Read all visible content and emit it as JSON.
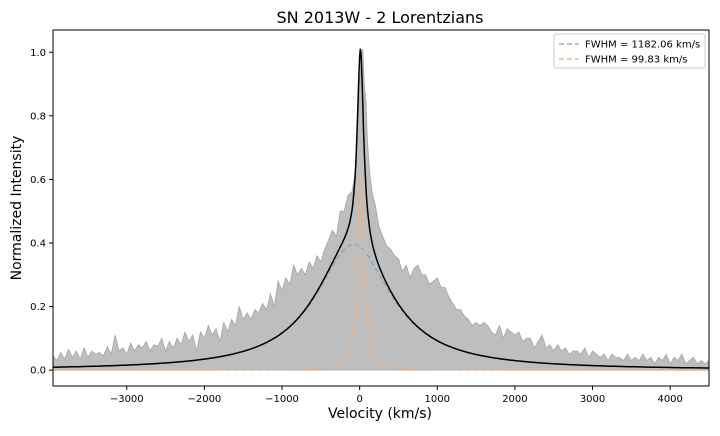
{
  "chart_data": {
    "type": "line",
    "title": "SN 2013W - 2 Lorentzians",
    "xlabel": "Velocity (km/s)",
    "ylabel": "Normalized Intensity",
    "xlim": [
      -3950,
      4500
    ],
    "ylim": [
      -0.05,
      1.07
    ],
    "x_ticks": [
      -3000,
      -2000,
      -1000,
      0,
      1000,
      2000,
      3000,
      4000
    ],
    "x_tick_labels": [
      "−3000",
      "−2000",
      "−1000",
      "0",
      "1000",
      "2000",
      "3000",
      "4000"
    ],
    "y_ticks": [
      0.0,
      0.2,
      0.4,
      0.6,
      0.8,
      1.0
    ],
    "y_tick_labels": [
      "0.0",
      "0.2",
      "0.4",
      "0.6",
      "0.8",
      "1.0"
    ],
    "grid": false,
    "legend_position": "top-right",
    "model": {
      "baseline": 0.0,
      "components": [
        {
          "name": "FWHM = 1182.06 km/s",
          "center": -80,
          "fwhm": 1182.06,
          "amplitude": 0.395,
          "color": "#7aa6c9"
        },
        {
          "name": "FWHM = 99.83 km/s",
          "center": 10,
          "fwhm": 99.83,
          "amplitude": 0.625,
          "color": "#f4b07a"
        }
      ],
      "total_color": "#000000"
    },
    "observed": {
      "fill_color": "#bebebe",
      "edge_color": "#a6a6a6",
      "points": [
        [
          -3950,
          0.045
        ],
        [
          -3900,
          0.03
        ],
        [
          -3850,
          0.055
        ],
        [
          -3800,
          0.035
        ],
        [
          -3750,
          0.065
        ],
        [
          -3700,
          0.04
        ],
        [
          -3650,
          0.06
        ],
        [
          -3600,
          0.035
        ],
        [
          -3550,
          0.07
        ],
        [
          -3500,
          0.04
        ],
        [
          -3450,
          0.06
        ],
        [
          -3400,
          0.05
        ],
        [
          -3350,
          0.055
        ],
        [
          -3300,
          0.045
        ],
        [
          -3250,
          0.075
        ],
        [
          -3200,
          0.05
        ],
        [
          -3150,
          0.11
        ],
        [
          -3100,
          0.06
        ],
        [
          -3050,
          0.07
        ],
        [
          -3000,
          0.05
        ],
        [
          -2950,
          0.085
        ],
        [
          -2900,
          0.06
        ],
        [
          -2850,
          0.08
        ],
        [
          -2800,
          0.07
        ],
        [
          -2750,
          0.09
        ],
        [
          -2700,
          0.06
        ],
        [
          -2650,
          0.08
        ],
        [
          -2600,
          0.075
        ],
        [
          -2550,
          0.1
        ],
        [
          -2500,
          0.06
        ],
        [
          -2450,
          0.09
        ],
        [
          -2400,
          0.07
        ],
        [
          -2350,
          0.1
        ],
        [
          -2300,
          0.08
        ],
        [
          -2250,
          0.12
        ],
        [
          -2200,
          0.09
        ],
        [
          -2150,
          0.11
        ],
        [
          -2100,
          0.06
        ],
        [
          -2050,
          0.12
        ],
        [
          -2000,
          0.1
        ],
        [
          -1950,
          0.14
        ],
        [
          -1900,
          0.11
        ],
        [
          -1850,
          0.13
        ],
        [
          -1800,
          0.09
        ],
        [
          -1750,
          0.15
        ],
        [
          -1700,
          0.12
        ],
        [
          -1650,
          0.16
        ],
        [
          -1600,
          0.14
        ],
        [
          -1550,
          0.2
        ],
        [
          -1500,
          0.16
        ],
        [
          -1450,
          0.18
        ],
        [
          -1400,
          0.16
        ],
        [
          -1350,
          0.19
        ],
        [
          -1300,
          0.18
        ],
        [
          -1250,
          0.21
        ],
        [
          -1200,
          0.19
        ],
        [
          -1150,
          0.24
        ],
        [
          -1100,
          0.2
        ],
        [
          -1050,
          0.28
        ],
        [
          -1000,
          0.25
        ],
        [
          -950,
          0.29
        ],
        [
          -900,
          0.27
        ],
        [
          -850,
          0.33
        ],
        [
          -800,
          0.3
        ],
        [
          -750,
          0.32
        ],
        [
          -700,
          0.3
        ],
        [
          -650,
          0.34
        ],
        [
          -600,
          0.32
        ],
        [
          -550,
          0.36
        ],
        [
          -500,
          0.34
        ],
        [
          -450,
          0.38
        ],
        [
          -400,
          0.41
        ],
        [
          -350,
          0.44
        ],
        [
          -300,
          0.42
        ],
        [
          -250,
          0.5
        ],
        [
          -200,
          0.5
        ],
        [
          -150,
          0.55
        ],
        [
          -100,
          0.56
        ],
        [
          -50,
          0.63
        ],
        [
          -25,
          0.75
        ],
        [
          0,
          0.9
        ],
        [
          20,
          0.99
        ],
        [
          40,
          1.01
        ],
        [
          60,
          0.9
        ],
        [
          80,
          0.85
        ],
        [
          100,
          0.72
        ],
        [
          130,
          0.62
        ],
        [
          160,
          0.56
        ],
        [
          200,
          0.52
        ],
        [
          250,
          0.45
        ],
        [
          300,
          0.42
        ],
        [
          350,
          0.39
        ],
        [
          400,
          0.38
        ],
        [
          450,
          0.36
        ],
        [
          500,
          0.35
        ],
        [
          550,
          0.31
        ],
        [
          600,
          0.33
        ],
        [
          650,
          0.29
        ],
        [
          700,
          0.32
        ],
        [
          750,
          0.33
        ],
        [
          800,
          0.3
        ],
        [
          850,
          0.3
        ],
        [
          900,
          0.27
        ],
        [
          950,
          0.28
        ],
        [
          1000,
          0.29
        ],
        [
          1050,
          0.26
        ],
        [
          1100,
          0.26
        ],
        [
          1150,
          0.23
        ],
        [
          1200,
          0.21
        ],
        [
          1250,
          0.19
        ],
        [
          1300,
          0.19
        ],
        [
          1350,
          0.17
        ],
        [
          1400,
          0.16
        ],
        [
          1450,
          0.14
        ],
        [
          1500,
          0.15
        ],
        [
          1550,
          0.14
        ],
        [
          1600,
          0.15
        ],
        [
          1650,
          0.14
        ],
        [
          1700,
          0.12
        ],
        [
          1750,
          0.11
        ],
        [
          1800,
          0.14
        ],
        [
          1850,
          0.1
        ],
        [
          1900,
          0.13
        ],
        [
          1950,
          0.12
        ],
        [
          2000,
          0.11
        ],
        [
          2050,
          0.12
        ],
        [
          2100,
          0.09
        ],
        [
          2150,
          0.1
        ],
        [
          2200,
          0.1
        ],
        [
          2250,
          0.07
        ],
        [
          2300,
          0.09
        ],
        [
          2350,
          0.11
        ],
        [
          2400,
          0.07
        ],
        [
          2450,
          0.08
        ],
        [
          2500,
          0.06
        ],
        [
          2550,
          0.08
        ],
        [
          2600,
          0.06
        ],
        [
          2650,
          0.07
        ],
        [
          2700,
          0.05
        ],
        [
          2750,
          0.06
        ],
        [
          2800,
          0.06
        ],
        [
          2850,
          0.05
        ],
        [
          2900,
          0.07
        ],
        [
          2950,
          0.04
        ],
        [
          3000,
          0.06
        ],
        [
          3050,
          0.05
        ],
        [
          3100,
          0.04
        ],
        [
          3150,
          0.05
        ],
        [
          3200,
          0.03
        ],
        [
          3250,
          0.05
        ],
        [
          3300,
          0.04
        ],
        [
          3350,
          0.04
        ],
        [
          3400,
          0.03
        ],
        [
          3450,
          0.05
        ],
        [
          3500,
          0.03
        ],
        [
          3550,
          0.04
        ],
        [
          3600,
          0.03
        ],
        [
          3650,
          0.05
        ],
        [
          3700,
          0.03
        ],
        [
          3750,
          0.04
        ],
        [
          3800,
          0.02
        ],
        [
          3850,
          0.04
        ],
        [
          3900,
          0.03
        ],
        [
          3950,
          0.05
        ],
        [
          4000,
          0.02
        ],
        [
          4050,
          0.04
        ],
        [
          4100,
          0.03
        ],
        [
          4150,
          0.05
        ],
        [
          4200,
          0.02
        ],
        [
          4250,
          0.03
        ],
        [
          4300,
          0.04
        ],
        [
          4350,
          0.02
        ],
        [
          4400,
          0.03
        ],
        [
          4450,
          0.02
        ],
        [
          4500,
          0.03
        ]
      ]
    }
  }
}
